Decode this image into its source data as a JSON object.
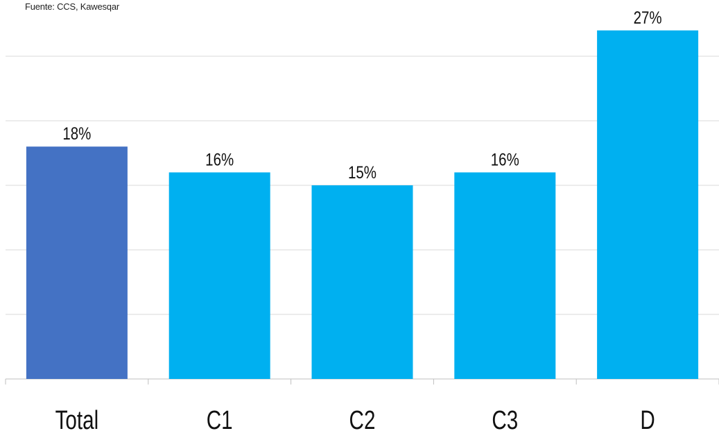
{
  "source": "Fuente: CCS, Kawesqar",
  "chart_data": {
    "type": "bar",
    "categories": [
      "Total",
      "C1",
      "C2",
      "C3",
      "D"
    ],
    "values": [
      18,
      16,
      15,
      16,
      27
    ],
    "data_labels": [
      "18%",
      "16%",
      "15%",
      "16%",
      "27%"
    ],
    "unit": "%",
    "title": "",
    "xlabel": "",
    "ylabel": "",
    "ylim": [
      0,
      30
    ],
    "grid": true,
    "legend": "none",
    "colors": {
      "highlight": "#4472C4",
      "bar": "#00B0F0",
      "grid": "#D9D9D9",
      "axis": "#BFBFBF",
      "text": "#111111"
    },
    "highlight_index": 0
  }
}
